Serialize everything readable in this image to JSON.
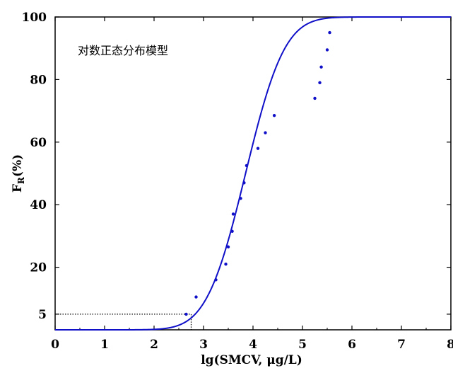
{
  "chart_data": {
    "type": "scatter",
    "annotation": "对数正态分布模型",
    "xlabel": "lg(SMCV,  μg/L)",
    "ylabel_main": "F",
    "ylabel_sub": "R",
    "ylabel_unit": "(%)",
    "xlim": [
      0,
      8
    ],
    "ylim": [
      0,
      100
    ],
    "xticks": [
      "0",
      "1",
      "2",
      "3",
      "4",
      "5",
      "6",
      "7",
      "8"
    ],
    "yticks": [
      "5",
      "20",
      "40",
      "60",
      "80",
      "100"
    ],
    "ytick_values": [
      5,
      20,
      40,
      60,
      80,
      100
    ],
    "grid": false,
    "colors": {
      "series": "#1010c8",
      "axis": "#000000"
    },
    "fit_curve": {
      "model": "lognormal CDF",
      "mean": 3.85,
      "sd": 0.62
    },
    "points": [
      {
        "x": 2.65,
        "y": 5.0
      },
      {
        "x": 2.85,
        "y": 10.5
      },
      {
        "x": 3.25,
        "y": 16.0
      },
      {
        "x": 3.45,
        "y": 21.0
      },
      {
        "x": 3.5,
        "y": 26.5
      },
      {
        "x": 3.58,
        "y": 31.5
      },
      {
        "x": 3.6,
        "y": 37.0
      },
      {
        "x": 3.75,
        "y": 42.0
      },
      {
        "x": 3.82,
        "y": 47.0
      },
      {
        "x": 3.87,
        "y": 52.5
      },
      {
        "x": 4.1,
        "y": 58.0
      },
      {
        "x": 4.25,
        "y": 63.0
      },
      {
        "x": 4.43,
        "y": 68.5
      },
      {
        "x": 5.25,
        "y": 74.0
      },
      {
        "x": 5.35,
        "y": 79.0
      },
      {
        "x": 5.38,
        "y": 84.0
      },
      {
        "x": 5.5,
        "y": 89.5
      },
      {
        "x": 5.55,
        "y": 95.0
      }
    ],
    "reference": {
      "x": 2.75,
      "y": 5
    }
  }
}
